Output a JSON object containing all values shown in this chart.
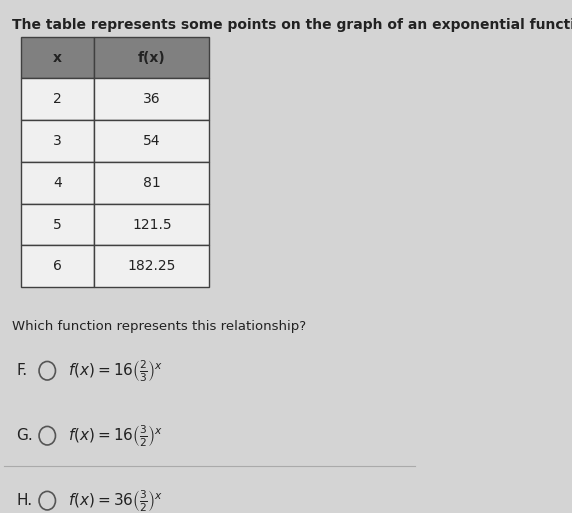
{
  "title": "The table represents some points on the graph of an exponential function.",
  "table_headers": [
    "x",
    "f(x)"
  ],
  "table_data": [
    [
      "2",
      "36"
    ],
    [
      "3",
      "54"
    ],
    [
      "4",
      "81"
    ],
    [
      "5",
      "121.5"
    ],
    [
      "6",
      "182.25"
    ]
  ],
  "question": "Which function represents this relationship?",
  "options": [
    {
      "label": "F."
    },
    {
      "label": "G."
    },
    {
      "label": "H."
    }
  ],
  "option_math": [
    "$f(x) = 16\\left(\\frac{2}{3}\\right)^x$",
    "$f(x) = 16\\left(\\frac{3}{2}\\right)^x$",
    "$f(x) = 36\\left(\\frac{3}{2}\\right)^x$"
  ],
  "bg_color": "#d4d4d4",
  "table_header_bg": "#808080",
  "table_row_bg": "#f0f0f0",
  "table_border_color": "#404040",
  "text_color": "#222222",
  "title_fontsize": 10,
  "question_fontsize": 9.5,
  "option_fontsize": 11
}
